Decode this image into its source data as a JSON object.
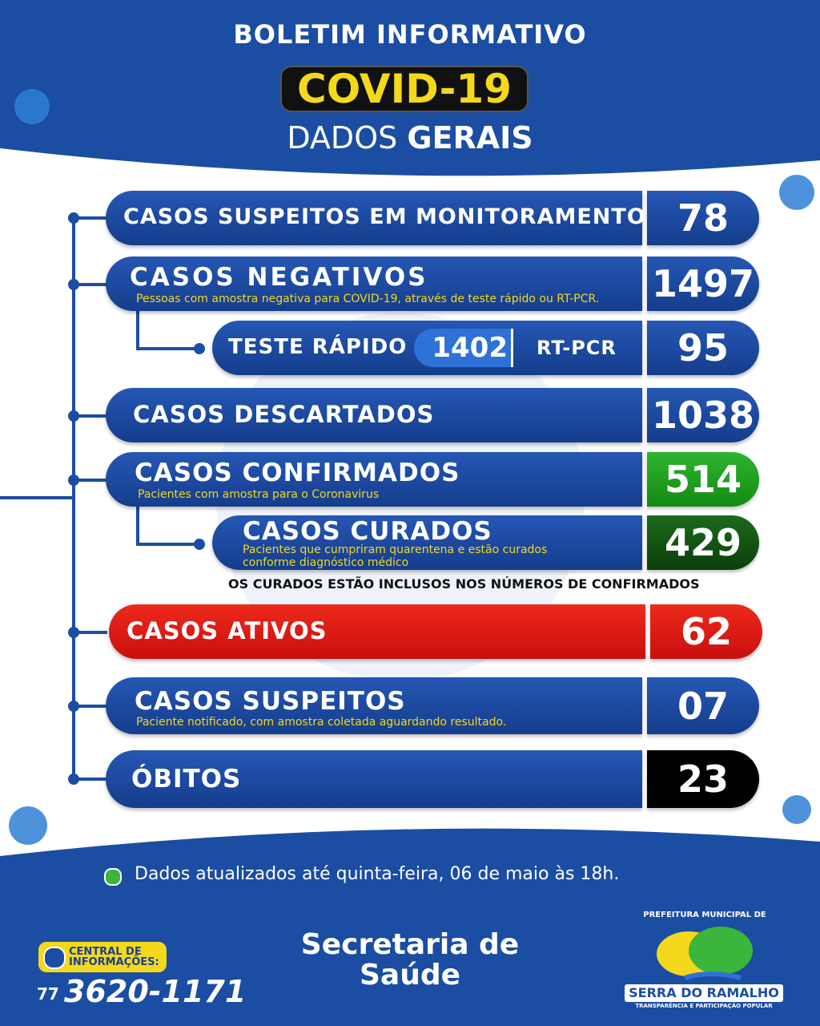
{
  "header": {
    "title": "BOLETIM INFORMATIVO",
    "badge": "COVID-19",
    "subtitle_light": "DADOS",
    "subtitle_bold": "GERAIS"
  },
  "rows": [
    {
      "label": "CASOS SUSPEITOS EM MONITORAMENTO",
      "value": "78"
    },
    {
      "label": "CASOS NEGATIVOS",
      "note": "Pessoas com amostra negativa para COVID-19, através de teste rápido ou RT-PCR.",
      "value": "1497"
    },
    {
      "label": "TESTE RÁPIDO",
      "value": "1402",
      "label2": "RT-PCR",
      "value2": "95"
    },
    {
      "label": "CASOS DESCARTADOS",
      "value": "1038"
    },
    {
      "label": "CASOS CONFIRMADOS",
      "note": "Pacientes com amostra para o Coronavirus",
      "value": "514"
    },
    {
      "label": "CASOS CURADOS",
      "note": "Pacientes que cumpriram quarentena e estão curados conforme diagnóstico médico",
      "value": "429"
    },
    {
      "label": "CASOS ATIVOS",
      "value": "62"
    },
    {
      "label": "CASOS SUSPEITOS",
      "note": "Paciente notificado, com amostra coletada aguardando resultado.",
      "value": "07"
    },
    {
      "label": "ÓBITOS",
      "value": "23"
    }
  ],
  "disclaimer": "OS CURADOS ESTÃO INCLUSOS NOS NÚMEROS DE CONFIRMADOS",
  "footer": {
    "update": "Dados atualizados até quinta-feira, 06 de maio às 18h.",
    "contact_label": "CENTRAL DE INFORMAÇÕES:",
    "area_code": "77",
    "phone": "3620-1171",
    "department": "Secretaria de Saúde",
    "logo_top": "PREFEITURA MUNICIPAL DE",
    "logo_name": "SERRA DO RAMALHO",
    "logo_tagline": "TRANSPARÊNCIA E PARTICIPAÇÃO POPULAR"
  }
}
